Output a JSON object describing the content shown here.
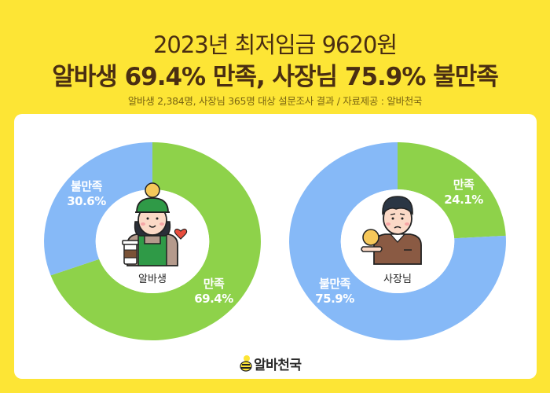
{
  "header": {
    "title_line1": "2023년 최저임금 9620원",
    "title_line2": "알바생 69.4% 만족, 사장님 75.9% 불만족",
    "subtitle": "알바생 2,384명, 사장님 365명 대상 설문조사 결과 / 자료제공 : 알바천국"
  },
  "colors": {
    "background": "#fde535",
    "title_text": "#4a2e12",
    "satisfied": "#8ed24a",
    "dissatisfied": "#86b9f7",
    "card": "#ffffff"
  },
  "charts": {
    "left": {
      "center_label": "알바생",
      "icon": "part-timer-barista-icon",
      "satisfied": {
        "label": "만족",
        "value": "69.4%"
      },
      "dissatisfied": {
        "label": "불만족",
        "value": "30.6%"
      }
    },
    "right": {
      "center_label": "사장님",
      "icon": "business-owner-icon",
      "satisfied": {
        "label": "만족",
        "value": "24.1%"
      },
      "dissatisfied": {
        "label": "불만족",
        "value": "75.9%"
      }
    }
  },
  "footer": {
    "logo_text": "알바천국",
    "logo_icon": "bee-icon"
  },
  "chart_data": [
    {
      "type": "pie",
      "title": "알바생",
      "categories": [
        "만족",
        "불만족"
      ],
      "values": [
        69.4,
        30.6
      ],
      "colors": [
        "#8ed24a",
        "#86b9f7"
      ],
      "donut": true
    },
    {
      "type": "pie",
      "title": "사장님",
      "categories": [
        "만족",
        "불만족"
      ],
      "values": [
        24.1,
        75.9
      ],
      "colors": [
        "#8ed24a",
        "#86b9f7"
      ],
      "donut": true
    }
  ]
}
